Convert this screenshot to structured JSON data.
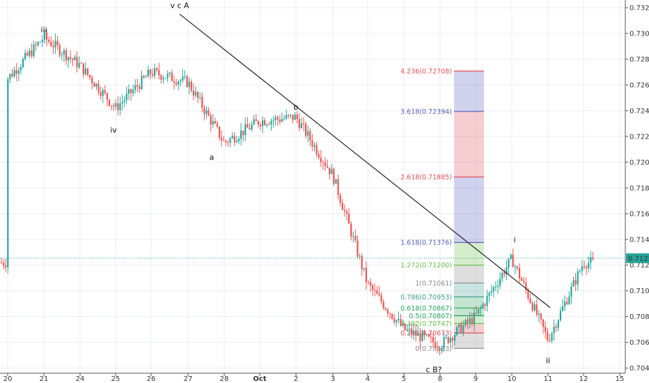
{
  "chart_data": {
    "type": "candlestick",
    "title": "",
    "yaxis": {
      "min": 0.7036,
      "max": 0.7326,
      "ticks": [
        "0.73200",
        "0.73000",
        "0.72800",
        "0.72600",
        "0.72400",
        "0.72200",
        "0.72000",
        "0.71800",
        "0.71600",
        "0.71400",
        "0.71200",
        "0.71000",
        "0.70800",
        "0.70600",
        "0.70400"
      ]
    },
    "xaxis": {
      "ticks": [
        "20",
        "21",
        "24",
        "25",
        "26",
        "27",
        "28",
        "Oct",
        "2",
        "3",
        "4",
        "5",
        "8",
        "9",
        "10",
        "11",
        "12",
        "15"
      ]
    },
    "current_price": {
      "value": 0.71254,
      "label": "0.71254",
      "color": "#26a69a"
    },
    "colors": {
      "up": "#26a69a",
      "down": "#ef5350",
      "grid": "#e9edf2",
      "line": "#222222"
    },
    "wave_labels": [
      {
        "text": "iii",
        "x": "21",
        "y": 0.7303
      },
      {
        "text": "iv",
        "x": "25",
        "y": 0.7225
      },
      {
        "text": "v c A",
        "x": "27",
        "y": 0.7322
      },
      {
        "text": "a",
        "x": "28",
        "y": 0.7204
      },
      {
        "text": "b",
        "x": "2",
        "y": 0.7243
      },
      {
        "text": "c B?",
        "x": "8",
        "y": 0.7039
      },
      {
        "text": "i",
        "x": "10",
        "y": 0.714
      },
      {
        "text": "ii",
        "x": "11",
        "y": 0.7046
      }
    ],
    "trendline": {
      "from": {
        "x": "27",
        "y": 0.7315
      },
      "to": {
        "x": "11",
        "y": 0.7087
      }
    },
    "fibonacci": {
      "from_x": "9",
      "to_x": "10",
      "levels": [
        {
          "ratio": "4.236",
          "value": 0.72708,
          "label": "4.236(0.72708)",
          "color": "#e0505b"
        },
        {
          "ratio": "3.618",
          "value": 0.72394,
          "label": "3.618(0.72394)",
          "color": "#5b5fbd"
        },
        {
          "ratio": "2.618",
          "value": 0.71885,
          "label": "2.618(0.71885)",
          "color": "#e0505b"
        },
        {
          "ratio": "1.618",
          "value": 0.71376,
          "label": "1.618(0.71376)",
          "color": "#5b5fbd"
        },
        {
          "ratio": "1.272",
          "value": 0.712,
          "label": "1.272(0.71200)",
          "color": "#6cc04a"
        },
        {
          "ratio": "1",
          "value": 0.71061,
          "label": "1(0.71061)",
          "color": "#888888"
        },
        {
          "ratio": "0.786",
          "value": 0.70953,
          "label": "0.786(0.70953)",
          "color": "#3d9e8f"
        },
        {
          "ratio": "0.618",
          "value": 0.70867,
          "label": "0.618(0.70867)",
          "color": "#2aa45a"
        },
        {
          "ratio": "0.5",
          "value": 0.70807,
          "label": "0.5(0.70807)",
          "color": "#2aa45a"
        },
        {
          "ratio": "0.382",
          "value": 0.70747,
          "label": "0.382(0.70747)",
          "color": "#6cc04a"
        },
        {
          "ratio": "0.236",
          "value": 0.70673,
          "label": "0.236(0.70673)",
          "color": "#e0505b"
        },
        {
          "ratio": "0",
          "value": 0.70553,
          "label": "0(0.70553)",
          "color": "#888888"
        }
      ]
    },
    "anchors": [
      {
        "x": "20",
        "y": 0.7265
      },
      {
        "x": "21",
        "y": 0.7297
      },
      {
        "x": "24",
        "y": 0.7275
      },
      {
        "x": "25",
        "y": 0.7242
      },
      {
        "x": "26",
        "y": 0.727
      },
      {
        "x": "27",
        "y": 0.7262
      },
      {
        "x": "28",
        "y": 0.7215
      },
      {
        "x": "Oct",
        "y": 0.7232
      },
      {
        "x": "2",
        "y": 0.7235
      },
      {
        "x": "3",
        "y": 0.719
      },
      {
        "x": "4",
        "y": 0.7105
      },
      {
        "x": "5",
        "y": 0.707
      },
      {
        "x": "8",
        "y": 0.7058
      },
      {
        "x": "9",
        "y": 0.708
      },
      {
        "x": "10",
        "y": 0.7125
      },
      {
        "x": "11",
        "y": 0.7062
      },
      {
        "x": "12",
        "y": 0.7122
      }
    ]
  }
}
